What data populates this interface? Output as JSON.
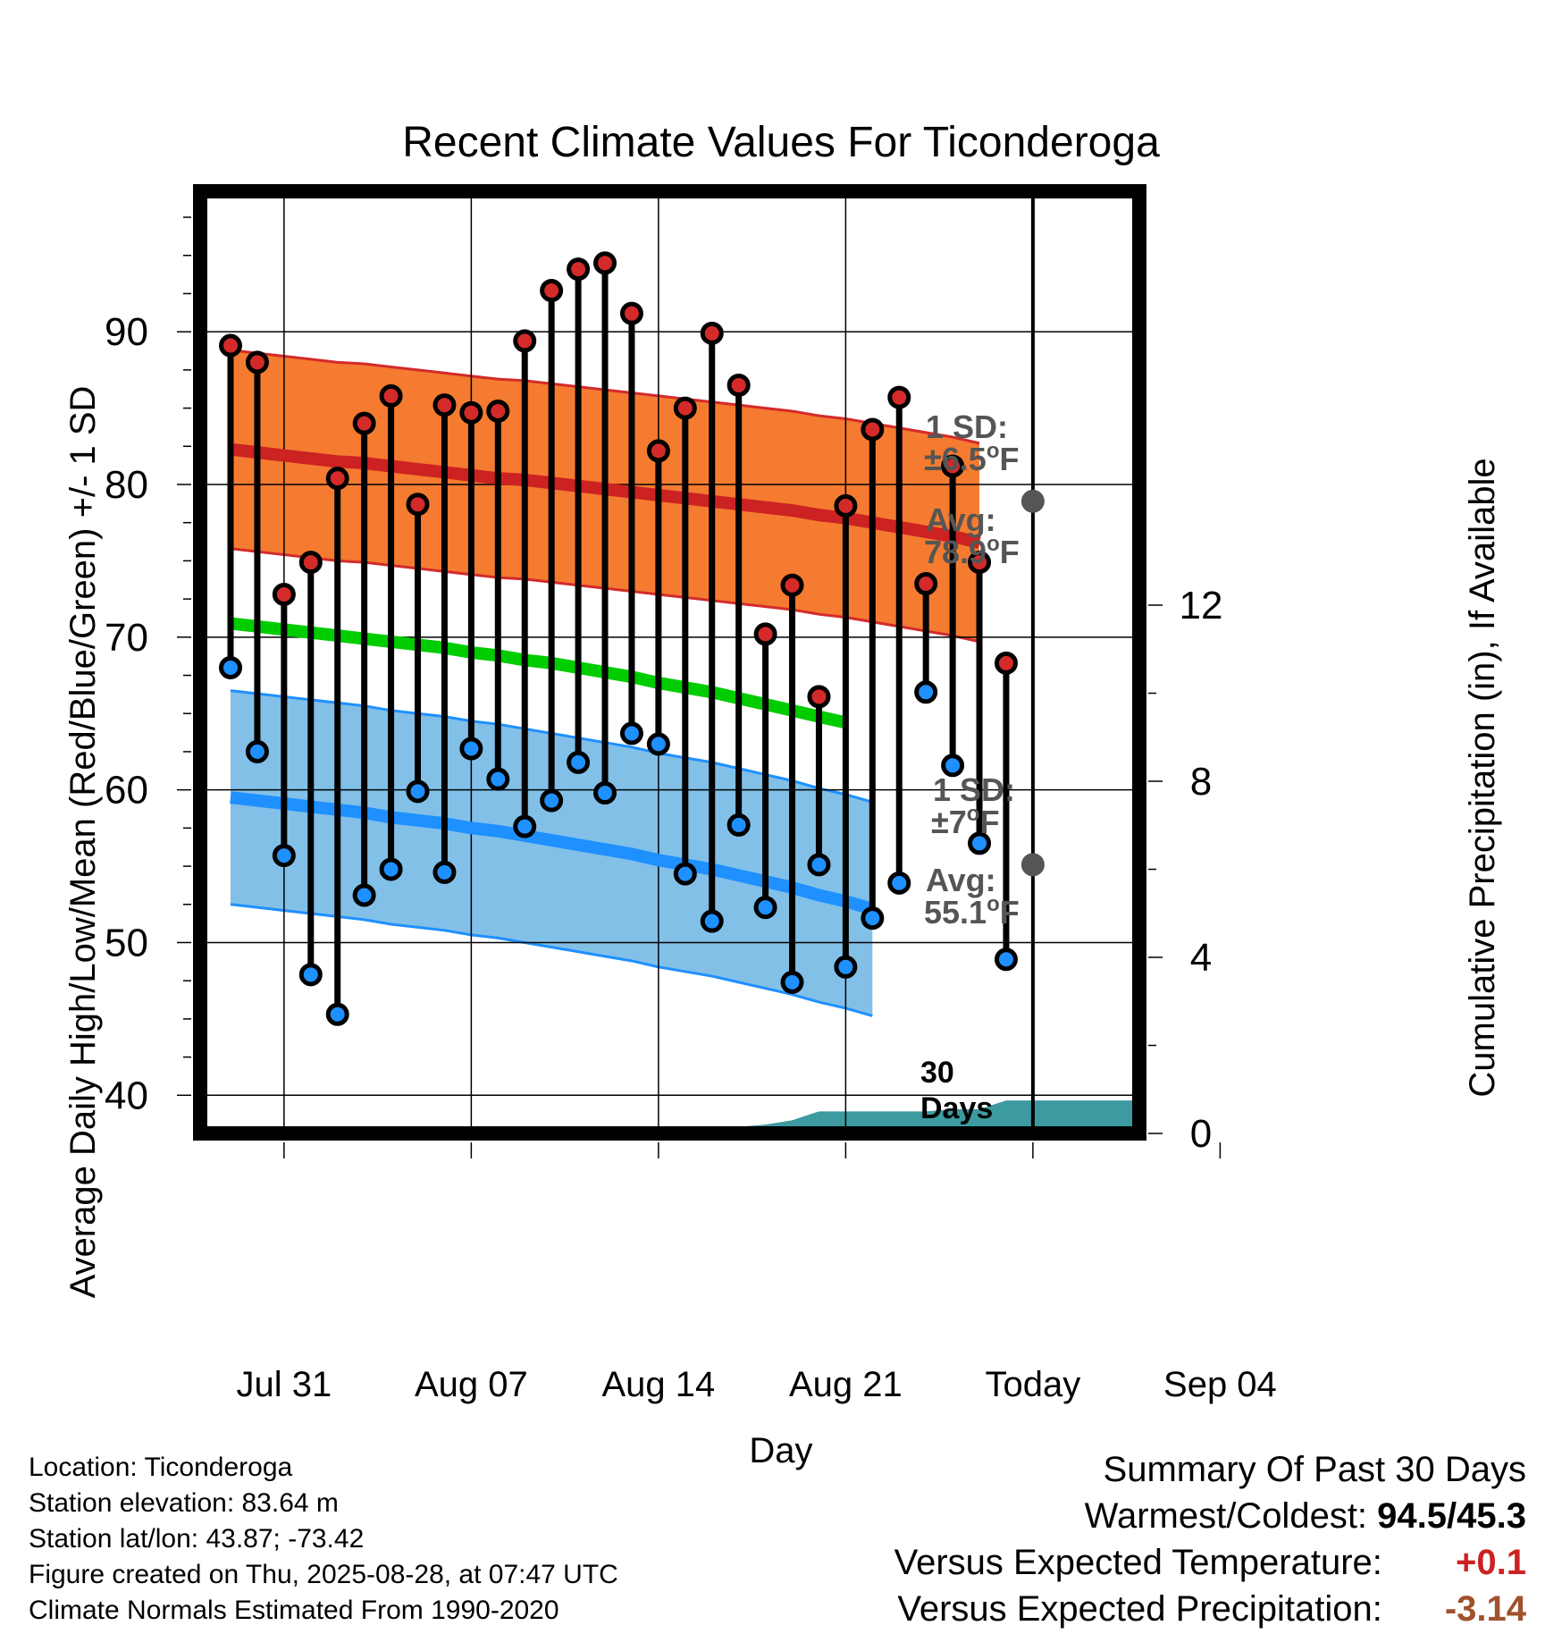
{
  "chart_data": {
    "type": "line",
    "title": "Recent Climate Values For Ticonderoga",
    "xlabel": "Day",
    "ylabel": "Average Daily High/Low/Mean (Red/Blue/Green) +/- 1 SD",
    "y2label": "Cumulative Precipitation (in), If Available",
    "ylim": [
      37.5,
      99.2
    ],
    "y_ticks": [
      40,
      50,
      60,
      70,
      80,
      90
    ],
    "y2lim": [
      0,
      24
    ],
    "y2_ticks": [
      0,
      4,
      8,
      12
    ],
    "x_dates": [
      "Jul 29",
      "Jul 30",
      "Jul 31",
      "Aug 01",
      "Aug 02",
      "Aug 03",
      "Aug 04",
      "Aug 05",
      "Aug 06",
      "Aug 07",
      "Aug 08",
      "Aug 09",
      "Aug 10",
      "Aug 11",
      "Aug 12",
      "Aug 13",
      "Aug 14",
      "Aug 15",
      "Aug 16",
      "Aug 17",
      "Aug 18",
      "Aug 19",
      "Aug 20",
      "Aug 21",
      "Aug 22",
      "Aug 23",
      "Aug 24",
      "Aug 25",
      "Aug 26",
      "Aug 27",
      "Aug 28",
      "Aug 29",
      "Aug 30",
      "Aug 31",
      "Sep 01",
      "Sep 02",
      "Sep 03",
      "Sep 04",
      "Sep 05",
      "Sep 06",
      "Sep 07"
    ],
    "x_tick_labels": [
      "Jul 31",
      "Aug 07",
      "Aug 14",
      "Aug 21",
      "Today",
      "Sep 04"
    ],
    "x_tick_dates": [
      "Jul 31",
      "Aug 07",
      "Aug 14",
      "Aug 21",
      "Aug 28",
      "Sep 04"
    ],
    "observed_dates": [
      "Jul 29",
      "Jul 30",
      "Jul 31",
      "Aug 01",
      "Aug 02",
      "Aug 03",
      "Aug 04",
      "Aug 05",
      "Aug 06",
      "Aug 07",
      "Aug 08",
      "Aug 09",
      "Aug 10",
      "Aug 11",
      "Aug 12",
      "Aug 13",
      "Aug 14",
      "Aug 15",
      "Aug 16",
      "Aug 17",
      "Aug 18",
      "Aug 19",
      "Aug 20",
      "Aug 21",
      "Aug 22",
      "Aug 23",
      "Aug 24",
      "Aug 25",
      "Aug 26",
      "Aug 27",
      "Aug 28"
    ],
    "series": [
      {
        "name": "Daily High",
        "color": "#cc2222",
        "values": [
          89.1,
          88.0,
          72.8,
          74.9,
          80.4,
          84.0,
          85.8,
          78.7,
          85.2,
          84.7,
          84.8,
          89.4,
          92.7,
          94.1,
          94.5,
          91.2,
          82.2,
          85.0,
          89.9,
          86.5,
          70.2,
          73.4,
          66.1,
          78.6,
          83.6,
          85.7,
          73.5,
          81.2,
          74.9,
          68.3
        ]
      },
      {
        "name": "Daily Low",
        "color": "#1e90ff",
        "values": [
          68.0,
          62.5,
          55.7,
          47.9,
          45.3,
          53.1,
          54.8,
          59.9,
          54.6,
          62.7,
          60.7,
          57.6,
          59.3,
          61.8,
          59.8,
          63.7,
          63.0,
          54.5,
          51.4,
          57.7,
          52.3,
          47.4,
          55.1,
          48.4,
          51.6,
          53.9,
          66.4,
          61.6,
          56.5,
          48.9
        ]
      },
      {
        "name": "Normal High",
        "color": "#cc2222",
        "sd": 6.5,
        "values": [
          82.3,
          82.1,
          81.9,
          81.7,
          81.5,
          81.4,
          81.2,
          81.0,
          80.8,
          80.6,
          80.4,
          80.3,
          80.1,
          79.9,
          79.7,
          79.5,
          79.3,
          79.1,
          78.9,
          78.7,
          78.5,
          78.3,
          78.0,
          77.8,
          77.5,
          77.2,
          76.9,
          76.6,
          76.2
        ]
      },
      {
        "name": "Normal Low",
        "color": "#1e90ff",
        "sd": 7,
        "values": [
          59.5,
          59.3,
          59.1,
          58.9,
          58.7,
          58.5,
          58.2,
          58.0,
          57.8,
          57.5,
          57.3,
          57.0,
          56.7,
          56.4,
          56.1,
          55.8,
          55.4,
          55.1,
          54.8,
          54.4,
          54.0,
          53.6,
          53.1,
          52.7,
          52.2
        ]
      },
      {
        "name": "Normal Mean",
        "color": "#00cc00",
        "values": [
          70.9,
          70.7,
          70.5,
          70.3,
          70.1,
          69.9,
          69.7,
          69.5,
          69.3,
          69.0,
          68.8,
          68.5,
          68.3,
          68.0,
          67.7,
          67.4,
          67.0,
          66.7,
          66.4,
          66.0,
          65.6,
          65.2,
          64.8,
          64.4
        ]
      },
      {
        "name": "Cumulative Precipitation",
        "color": "#3d9aa0",
        "values": [
          0,
          0,
          0,
          0,
          0,
          0,
          0,
          0,
          0,
          0,
          0,
          0,
          0,
          0,
          0.1,
          0.1,
          0.1,
          0.1,
          0.1,
          0.15,
          0.2,
          0.3,
          0.5,
          0.5,
          0.5,
          0.5,
          0.5,
          0.55,
          0.55,
          0.75,
          0.75
        ]
      }
    ],
    "annotations": {
      "high_sd": "1 SD:",
      "high_sd_val": "±6.5",
      "high_avg": "Avg:",
      "high_avg_val": "78.9",
      "low_sd": "1 SD:",
      "low_sd_val": "±7",
      "low_avg": "Avg:",
      "low_avg_val": "55.1",
      "deg_unit": "o",
      "unit_f": "F",
      "today_label_1": "30",
      "today_label_2": "Days"
    },
    "colors": {
      "high_band": "#f47b30",
      "low_band": "#82c0e8",
      "high_line": "#d42a2a",
      "low_line": "#1e90ff",
      "mean_line": "#00cc00",
      "precip": "#3d9aa0",
      "annotation_text": "#555555",
      "avg_marker": "#555555"
    },
    "grid": true
  },
  "info": {
    "location": "Location: Ticonderoga",
    "elevation": "Station elevation: 83.64 m",
    "latlon": "Station lat/lon: 43.87; -73.42",
    "created": "Figure created on Thu, 2025-08-28, at 07:47 UTC",
    "normals": "Climate Normals Estimated From 1990-2020"
  },
  "summary": {
    "heading": "Summary Of Past 30 Days",
    "warm_cold_label": "Warmest/Coldest:",
    "warm_cold_value": "94.5/45.3",
    "temp_label": "Versus Expected Temperature:",
    "temp_value": "+0.1",
    "temp_color": "#cc2222",
    "precip_label": "Versus Expected Precipitation:",
    "precip_value": "-3.14",
    "precip_color": "#a0522d"
  }
}
